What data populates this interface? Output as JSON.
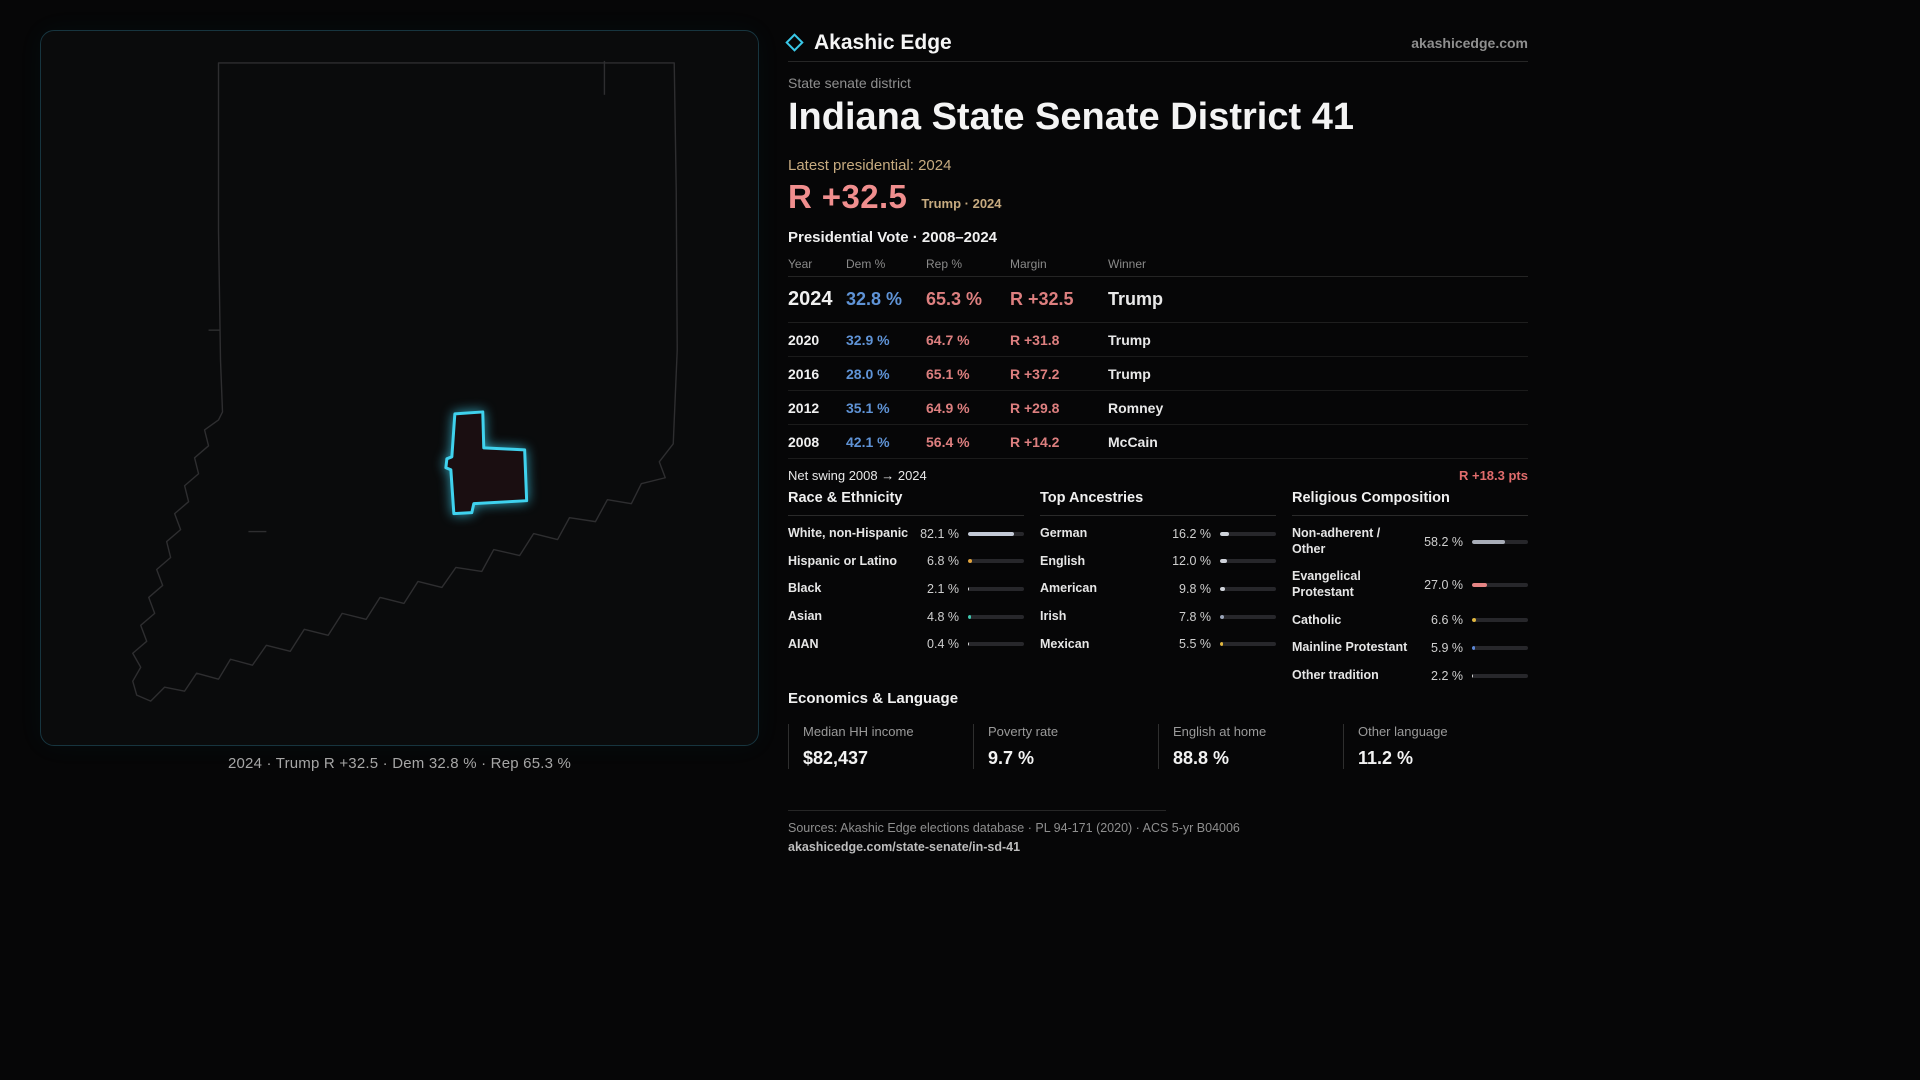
{
  "colors": {
    "accent_cyan": "#3ac8e8",
    "dem_blue": "#5f93d6",
    "rep_red": "#dd7f7f",
    "gold": "#c7ab80"
  },
  "header": {
    "brand": "Akashic Edge",
    "site": "akashicedge.com",
    "district_type": "State senate district",
    "title": "Indiana State Senate District 41",
    "latest_label": "Latest presidential: 2024",
    "margin_big": "R +32.5",
    "margin_sub": "Trump · 2024"
  },
  "map": {
    "caption": "2024 · Trump R +32.5 · Dem 32.8 % · Rep 65.3 %"
  },
  "vote": {
    "title": "Presidential Vote · 2008–2024",
    "columns": [
      "Year",
      "Dem %",
      "Rep %",
      "Margin",
      "Winner"
    ],
    "rows": [
      {
        "year": "2024",
        "dem": "32.8 %",
        "rep": "65.3 %",
        "margin": "R +32.5",
        "winner": "Trump"
      },
      {
        "year": "2020",
        "dem": "32.9 %",
        "rep": "64.7 %",
        "margin": "R +31.8",
        "winner": "Trump"
      },
      {
        "year": "2016",
        "dem": "28.0 %",
        "rep": "65.1 %",
        "margin": "R +37.2",
        "winner": "Trump"
      },
      {
        "year": "2012",
        "dem": "35.1 %",
        "rep": "64.9 %",
        "margin": "R +29.8",
        "winner": "Romney"
      },
      {
        "year": "2008",
        "dem": "42.1 %",
        "rep": "56.4 %",
        "margin": "R +14.2",
        "winner": "McCain"
      }
    ],
    "net_swing_label": "Net swing 2008 → 2024",
    "net_swing_value": "R +18.3 pts"
  },
  "demographics": {
    "race": {
      "title": "Race & Ethnicity",
      "items": [
        {
          "label": "White, non-Hispanic",
          "value": "82.1 %",
          "pct": 82.1,
          "color": "#c3c9d6"
        },
        {
          "label": "Hispanic or Latino",
          "value": "6.8 %",
          "pct": 6.8,
          "color": "#e3a43c"
        },
        {
          "label": "Black",
          "value": "2.1 %",
          "pct": 2.1,
          "color": "#d8d8d8"
        },
        {
          "label": "Asian",
          "value": "4.8 %",
          "pct": 4.8,
          "color": "#3ec9b0"
        },
        {
          "label": "AIAN",
          "value": "0.4 %",
          "pct": 0.4,
          "color": "#d8d8d8"
        }
      ]
    },
    "ancestries": {
      "title": "Top Ancestries",
      "items": [
        {
          "label": "German",
          "value": "16.2 %",
          "pct": 16.2,
          "color": "#cfd3da"
        },
        {
          "label": "English",
          "value": "12.0 %",
          "pct": 12.0,
          "color": "#cfd3da"
        },
        {
          "label": "American",
          "value": "9.8 %",
          "pct": 9.8,
          "color": "#cfd3da"
        },
        {
          "label": "Irish",
          "value": "7.8 %",
          "pct": 7.8,
          "color": "#9aa4b8"
        },
        {
          "label": "Mexican",
          "value": "5.5 %",
          "pct": 5.5,
          "color": "#e0b63e"
        }
      ]
    },
    "religion": {
      "title": "Religious Composition",
      "items": [
        {
          "label": "Non-adherent / Other",
          "value": "58.2 %",
          "pct": 58.2,
          "color": "#a8adb8"
        },
        {
          "label": "Evangelical Protestant",
          "value": "27.0 %",
          "pct": 27.0,
          "color": "#e58484"
        },
        {
          "label": "Catholic",
          "value": "6.6 %",
          "pct": 6.6,
          "color": "#e0b63e"
        },
        {
          "label": "Mainline Protestant",
          "value": "5.9 %",
          "pct": 5.9,
          "color": "#5b86d6"
        },
        {
          "label": "Other tradition",
          "value": "2.2 %",
          "pct": 2.2,
          "color": "#d8d8d8"
        }
      ]
    }
  },
  "economics": {
    "title": "Economics & Language",
    "stats": [
      {
        "label": "Median HH income",
        "value": "$82,437"
      },
      {
        "label": "Poverty rate",
        "value": "9.7 %"
      },
      {
        "label": "English at home",
        "value": "88.8 %"
      },
      {
        "label": "Other language",
        "value": "11.2 %"
      }
    ]
  },
  "footer": {
    "sources": "Sources: Akashic Edge elections database · PL 94-171 (2020) · ACS 5-yr B04006",
    "permalink": "akashicedge.com/state-senate/in-sd-41"
  },
  "chart_data": [
    {
      "type": "table",
      "title": "Presidential Vote · 2008–2024",
      "columns": [
        "Year",
        "Dem %",
        "Rep %",
        "Margin",
        "Winner"
      ],
      "rows": [
        [
          "2024",
          32.8,
          65.3,
          "R +32.5",
          "Trump"
        ],
        [
          "2020",
          32.9,
          64.7,
          "R +31.8",
          "Trump"
        ],
        [
          "2016",
          28.0,
          65.1,
          "R +37.2",
          "Trump"
        ],
        [
          "2012",
          35.1,
          64.9,
          "R +29.8",
          "Romney"
        ],
        [
          "2008",
          42.1,
          56.4,
          "R +14.2",
          "McCain"
        ]
      ],
      "net_swing": "R +18.3 pts"
    },
    {
      "type": "bar",
      "title": "Race & Ethnicity",
      "categories": [
        "White, non-Hispanic",
        "Hispanic or Latino",
        "Black",
        "Asian",
        "AIAN"
      ],
      "values": [
        82.1,
        6.8,
        2.1,
        4.8,
        0.4
      ],
      "unit": "%",
      "xlim": [
        0,
        100
      ]
    },
    {
      "type": "bar",
      "title": "Top Ancestries",
      "categories": [
        "German",
        "English",
        "American",
        "Irish",
        "Mexican"
      ],
      "values": [
        16.2,
        12.0,
        9.8,
        7.8,
        5.5
      ],
      "unit": "%",
      "xlim": [
        0,
        100
      ]
    },
    {
      "type": "bar",
      "title": "Religious Composition",
      "categories": [
        "Non-adherent / Other",
        "Evangelical Protestant",
        "Catholic",
        "Mainline Protestant",
        "Other tradition"
      ],
      "values": [
        58.2,
        27.0,
        6.6,
        5.9,
        2.2
      ],
      "unit": "%",
      "xlim": [
        0,
        100
      ]
    }
  ]
}
